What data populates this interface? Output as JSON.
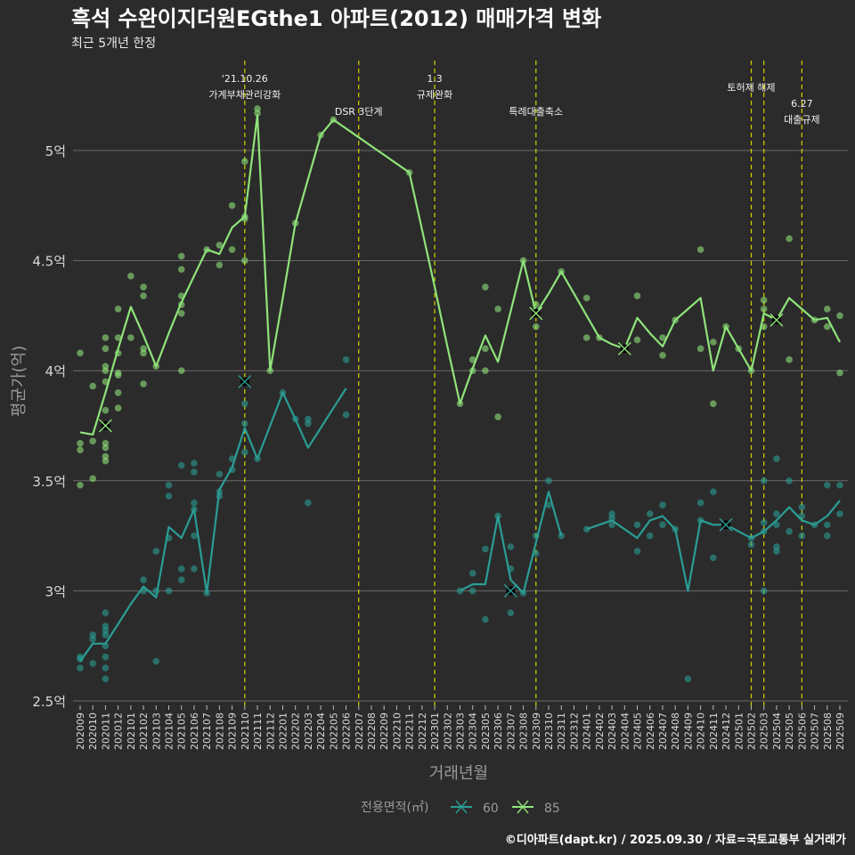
{
  "chart_data": {
    "type": "line",
    "title": "흑석 수완이지더원EGthe1 아파트(2012) 매매가격 변화",
    "subtitle": "최근 5개년 한정",
    "xlabel": "거래년월",
    "ylabel": "평균가(억)",
    "ylim": [
      2.5,
      5.25
    ],
    "y_ticks": [
      {
        "value": 2.5,
        "label": "2.5억"
      },
      {
        "value": 3,
        "label": "3억"
      },
      {
        "value": 3.5,
        "label": "3.5억"
      },
      {
        "value": 4,
        "label": "4억"
      },
      {
        "value": 4.5,
        "label": "4.5억"
      },
      {
        "value": 5,
        "label": "5억"
      }
    ],
    "grid": true,
    "legend": {
      "title": "전용면적(㎡)",
      "position": "bottom"
    },
    "categories": [
      "202009",
      "202010",
      "202011",
      "202012",
      "202101",
      "202102",
      "202103",
      "202104",
      "202105",
      "202106",
      "202107",
      "202108",
      "202109",
      "202110",
      "202111",
      "202112",
      "202201",
      "202202",
      "202203",
      "202204",
      "202205",
      "202206",
      "202207",
      "202208",
      "202209",
      "202210",
      "202211",
      "202212",
      "202301",
      "202302",
      "202303",
      "202304",
      "202305",
      "202306",
      "202307",
      "202308",
      "202309",
      "202310",
      "202311",
      "202312",
      "202401",
      "202402",
      "202403",
      "202404",
      "202405",
      "202406",
      "202407",
      "202408",
      "202409",
      "202410",
      "202411",
      "202412",
      "202501",
      "202502",
      "202503",
      "202504",
      "202505",
      "202506",
      "202507",
      "202508",
      "202509"
    ],
    "series": [
      {
        "name": "60",
        "color": "#2a9d95",
        "values": [
          2.68,
          2.76,
          2.76,
          2.85,
          2.94,
          3.02,
          2.97,
          3.29,
          3.24,
          3.37,
          2.99,
          3.46,
          3.56,
          3.74,
          3.6,
          3.75,
          3.9,
          3.78,
          3.65,
          3.74,
          3.83,
          3.92,
          null,
          null,
          null,
          null,
          null,
          null,
          null,
          null,
          3.0,
          3.03,
          3.03,
          3.34,
          3.05,
          2.99,
          3.22,
          3.45,
          3.25,
          null,
          3.28,
          3.3,
          3.32,
          3.28,
          3.24,
          3.32,
          3.34,
          3.28,
          3.0,
          3.32,
          3.3,
          3.3,
          3.27,
          3.24,
          3.27,
          3.32,
          3.38,
          3.32,
          3.3,
          3.34,
          3.41
        ],
        "highlights": [
          [
            "202110",
            3.95
          ],
          [
            "202307",
            3.0
          ],
          [
            "202412",
            3.3
          ]
        ],
        "points": [
          [
            "202009",
            2.7
          ],
          [
            "202009",
            2.69
          ],
          [
            "202009",
            2.65
          ],
          [
            "202010",
            2.8
          ],
          [
            "202010",
            2.78
          ],
          [
            "202010",
            2.67
          ],
          [
            "202011",
            2.9
          ],
          [
            "202011",
            2.84
          ],
          [
            "202011",
            2.82
          ],
          [
            "202011",
            2.8
          ],
          [
            "202011",
            2.75
          ],
          [
            "202011",
            2.7
          ],
          [
            "202011",
            2.65
          ],
          [
            "202011",
            2.6
          ],
          [
            "202102",
            3.05
          ],
          [
            "202102",
            3.0
          ],
          [
            "202103",
            3.18
          ],
          [
            "202103",
            3.0
          ],
          [
            "202103",
            2.68
          ],
          [
            "202104",
            3.48
          ],
          [
            "202104",
            3.43
          ],
          [
            "202104",
            3.24
          ],
          [
            "202104",
            3.0
          ],
          [
            "202105",
            3.57
          ],
          [
            "202105",
            3.1
          ],
          [
            "202105",
            3.05
          ],
          [
            "202106",
            3.58
          ],
          [
            "202106",
            3.54
          ],
          [
            "202106",
            3.4
          ],
          [
            "202106",
            3.37
          ],
          [
            "202106",
            3.25
          ],
          [
            "202106",
            3.1
          ],
          [
            "202107",
            2.99
          ],
          [
            "202108",
            3.53
          ],
          [
            "202108",
            3.45
          ],
          [
            "202108",
            3.43
          ],
          [
            "202109",
            3.6
          ],
          [
            "202109",
            3.55
          ],
          [
            "202110",
            3.85
          ],
          [
            "202110",
            3.76
          ],
          [
            "202110",
            3.63
          ],
          [
            "202111",
            3.6
          ],
          [
            "202201",
            3.9
          ],
          [
            "202202",
            3.78
          ],
          [
            "202203",
            3.78
          ],
          [
            "202203",
            3.76
          ],
          [
            "202203",
            3.4
          ],
          [
            "202206",
            3.8
          ],
          [
            "202206",
            4.05
          ],
          [
            "202303",
            3.0
          ],
          [
            "202304",
            3.08
          ],
          [
            "202304",
            3.0
          ],
          [
            "202305",
            3.19
          ],
          [
            "202305",
            2.87
          ],
          [
            "202306",
            3.34
          ],
          [
            "202307",
            3.2
          ],
          [
            "202307",
            3.1
          ],
          [
            "202307",
            2.9
          ],
          [
            "202308",
            2.99
          ],
          [
            "202309",
            3.25
          ],
          [
            "202309",
            3.17
          ],
          [
            "202310",
            3.5
          ],
          [
            "202310",
            3.39
          ],
          [
            "202311",
            3.25
          ],
          [
            "202401",
            3.28
          ],
          [
            "202403",
            3.35
          ],
          [
            "202403",
            3.33
          ],
          [
            "202403",
            3.3
          ],
          [
            "202405",
            3.3
          ],
          [
            "202405",
            3.18
          ],
          [
            "202406",
            3.35
          ],
          [
            "202406",
            3.25
          ],
          [
            "202407",
            3.39
          ],
          [
            "202407",
            3.3
          ],
          [
            "202408",
            3.28
          ],
          [
            "202409",
            2.6
          ],
          [
            "202410",
            3.4
          ],
          [
            "202410",
            3.32
          ],
          [
            "202411",
            3.45
          ],
          [
            "202411",
            3.15
          ],
          [
            "202502",
            3.24
          ],
          [
            "202502",
            3.21
          ],
          [
            "202503",
            3.5
          ],
          [
            "202503",
            3.31
          ],
          [
            "202503",
            3.27
          ],
          [
            "202503",
            3.0
          ],
          [
            "202504",
            3.6
          ],
          [
            "202504",
            3.35
          ],
          [
            "202504",
            3.3
          ],
          [
            "202504",
            3.2
          ],
          [
            "202504",
            3.18
          ],
          [
            "202505",
            3.5
          ],
          [
            "202505",
            3.27
          ],
          [
            "202506",
            3.38
          ],
          [
            "202506",
            3.34
          ],
          [
            "202506",
            3.25
          ],
          [
            "202507",
            3.3
          ],
          [
            "202508",
            3.48
          ],
          [
            "202508",
            3.3
          ],
          [
            "202508",
            3.25
          ],
          [
            "202509",
            3.48
          ],
          [
            "202509",
            3.35
          ]
        ]
      },
      {
        "name": "85",
        "color": "#8fe37a",
        "values": [
          3.72,
          3.71,
          3.9,
          4.1,
          4.29,
          4.16,
          4.02,
          4.17,
          4.31,
          4.43,
          4.55,
          4.53,
          4.65,
          4.7,
          5.16,
          4.0,
          4.33,
          4.67,
          4.87,
          5.07,
          5.14,
          5.1,
          5.06,
          5.02,
          4.98,
          4.94,
          4.9,
          4.64,
          4.38,
          4.11,
          3.85,
          4.01,
          4.16,
          4.04,
          4.27,
          4.5,
          4.26,
          4.35,
          4.45,
          4.35,
          4.25,
          4.15,
          4.12,
          4.1,
          4.24,
          4.17,
          4.11,
          4.23,
          4.28,
          4.33,
          4.0,
          4.2,
          4.1,
          4.0,
          4.26,
          4.23,
          4.33,
          4.28,
          4.23,
          4.24,
          4.13
        ],
        "highlights": [
          [
            "202011",
            3.75
          ],
          [
            "202309",
            4.26
          ],
          [
            "202404",
            4.1
          ],
          [
            "202504",
            4.23
          ]
        ],
        "points": [
          [
            "202009",
            4.08
          ],
          [
            "202009",
            3.67
          ],
          [
            "202009",
            3.64
          ],
          [
            "202009",
            3.48
          ],
          [
            "202010",
            3.93
          ],
          [
            "202010",
            3.68
          ],
          [
            "202010",
            3.51
          ],
          [
            "202011",
            4.15
          ],
          [
            "202011",
            4.1
          ],
          [
            "202011",
            4.02
          ],
          [
            "202011",
            4.0
          ],
          [
            "202011",
            3.95
          ],
          [
            "202011",
            3.82
          ],
          [
            "202011",
            3.67
          ],
          [
            "202011",
            3.65
          ],
          [
            "202011",
            3.61
          ],
          [
            "202011",
            3.59
          ],
          [
            "202012",
            4.28
          ],
          [
            "202012",
            4.15
          ],
          [
            "202012",
            4.08
          ],
          [
            "202012",
            3.99
          ],
          [
            "202012",
            3.98
          ],
          [
            "202012",
            3.9
          ],
          [
            "202012",
            3.83
          ],
          [
            "202101",
            4.43
          ],
          [
            "202101",
            4.15
          ],
          [
            "202102",
            4.38
          ],
          [
            "202102",
            4.34
          ],
          [
            "202102",
            4.1
          ],
          [
            "202102",
            4.08
          ],
          [
            "202102",
            3.94
          ],
          [
            "202103",
            4.02
          ],
          [
            "202105",
            4.52
          ],
          [
            "202105",
            4.46
          ],
          [
            "202105",
            4.34
          ],
          [
            "202105",
            4.3
          ],
          [
            "202105",
            4.26
          ],
          [
            "202105",
            4.0
          ],
          [
            "202107",
            4.55
          ],
          [
            "202108",
            4.57
          ],
          [
            "202108",
            4.48
          ],
          [
            "202109",
            4.75
          ],
          [
            "202109",
            4.55
          ],
          [
            "202110",
            4.95
          ],
          [
            "202110",
            4.7
          ],
          [
            "202110",
            4.69
          ],
          [
            "202110",
            4.5
          ],
          [
            "202111",
            5.19
          ],
          [
            "202111",
            5.17
          ],
          [
            "202112",
            4.0
          ],
          [
            "202202",
            4.67
          ],
          [
            "202204",
            5.07
          ],
          [
            "202205",
            5.14
          ],
          [
            "202211",
            4.9
          ],
          [
            "202303",
            3.85
          ],
          [
            "202304",
            4.05
          ],
          [
            "202304",
            4.0
          ],
          [
            "202305",
            4.38
          ],
          [
            "202305",
            4.1
          ],
          [
            "202305",
            4.0
          ],
          [
            "202306",
            4.28
          ],
          [
            "202306",
            3.79
          ],
          [
            "202308",
            4.5
          ],
          [
            "202309",
            4.3
          ],
          [
            "202309",
            4.2
          ],
          [
            "202311",
            4.45
          ],
          [
            "202401",
            4.33
          ],
          [
            "202401",
            4.15
          ],
          [
            "202402",
            4.15
          ],
          [
            "202404",
            4.1
          ],
          [
            "202405",
            4.34
          ],
          [
            "202405",
            4.14
          ],
          [
            "202407",
            4.15
          ],
          [
            "202407",
            4.07
          ],
          [
            "202408",
            4.23
          ],
          [
            "202410",
            4.55
          ],
          [
            "202410",
            4.1
          ],
          [
            "202411",
            4.13
          ],
          [
            "202411",
            3.85
          ],
          [
            "202412",
            4.2
          ],
          [
            "202501",
            4.1
          ],
          [
            "202502",
            4.0
          ],
          [
            "202503",
            4.32
          ],
          [
            "202503",
            4.28
          ],
          [
            "202503",
            4.2
          ],
          [
            "202504",
            4.23
          ],
          [
            "202505",
            4.6
          ],
          [
            "202505",
            4.05
          ],
          [
            "202507",
            4.23
          ],
          [
            "202508",
            4.28
          ],
          [
            "202508",
            4.2
          ],
          [
            "202509",
            4.25
          ],
          [
            "202509",
            3.99
          ]
        ]
      }
    ],
    "annotations": [
      {
        "month": "202110",
        "lines": [
          "'21.10.26",
          "가계부채관리강화"
        ]
      },
      {
        "month": "202207",
        "lines": [
          "DSR 3단계"
        ]
      },
      {
        "month": "202301",
        "lines": [
          "1.3",
          "규제완화"
        ]
      },
      {
        "month": "202309",
        "lines": [
          "특례대출축소"
        ]
      },
      {
        "month": "202502",
        "lines": [
          "토허제 해제"
        ]
      },
      {
        "month": "202503",
        "lines": []
      },
      {
        "month": "202506",
        "lines": [
          "6.27",
          "대출규제"
        ]
      }
    ],
    "annotation_color": "#d4d400",
    "caption": "©디아파트(dapt.kr) / 2025.09.30 / 자료=국토교통부 실거래가"
  }
}
